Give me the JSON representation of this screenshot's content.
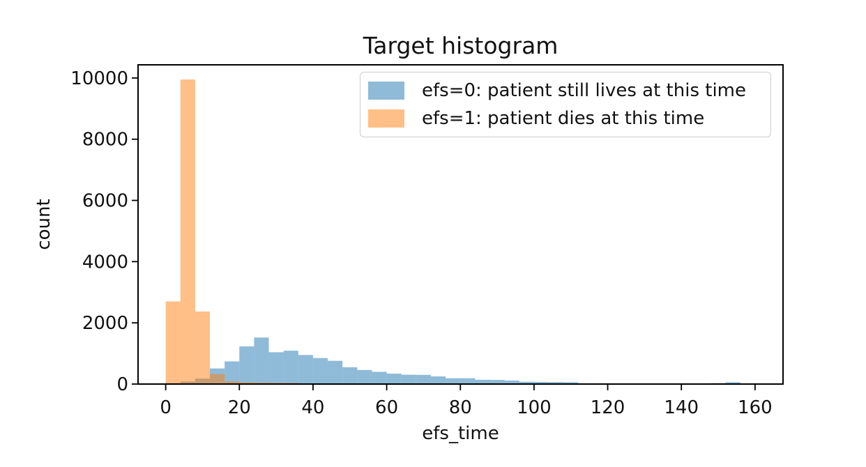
{
  "chart_data": {
    "type": "histogram",
    "title": "Target histogram",
    "xlabel": "efs_time",
    "ylabel": "count",
    "bin_start": 0,
    "bin_width": 4,
    "n_bins": 39,
    "xlim": [
      -7.5,
      167.6
    ],
    "ylim": [
      0,
      10430
    ],
    "x_ticks": [
      0,
      20,
      40,
      60,
      80,
      100,
      120,
      140,
      160
    ],
    "y_ticks": [
      0,
      2000,
      4000,
      6000,
      8000,
      10000
    ],
    "grid": false,
    "legend_position": "upper right",
    "series": [
      {
        "id": "efs0",
        "name": "efs=0: patient still lives at this time",
        "color": "#1f77b4",
        "fill": "rgba(31,119,180,0.5)",
        "counts": [
          30,
          85,
          180,
          510,
          740,
          1230,
          1520,
          1040,
          1090,
          950,
          850,
          760,
          550,
          460,
          400,
          340,
          305,
          300,
          250,
          190,
          190,
          140,
          135,
          115,
          75,
          70,
          65,
          60,
          25,
          25,
          20,
          20,
          20,
          20,
          15,
          15,
          20,
          30,
          60
        ]
      },
      {
        "id": "efs1",
        "name": "efs=1: patient dies at this time",
        "color": "#ff7f0e",
        "fill": "rgba(255,127,14,0.5)",
        "counts": [
          2700,
          9950,
          2370,
          330,
          85,
          60,
          45,
          40,
          35,
          0,
          0,
          0,
          0,
          0,
          0,
          0,
          0,
          0,
          0,
          0,
          0,
          0,
          0,
          0,
          0,
          0,
          0,
          0,
          0,
          0,
          0,
          0,
          0,
          0,
          0,
          0,
          0,
          0,
          0
        ]
      }
    ],
    "colors": {
      "spine": "#000000",
      "text": "#111111",
      "legend_border": "#cccccc",
      "background": "#ffffff"
    }
  }
}
